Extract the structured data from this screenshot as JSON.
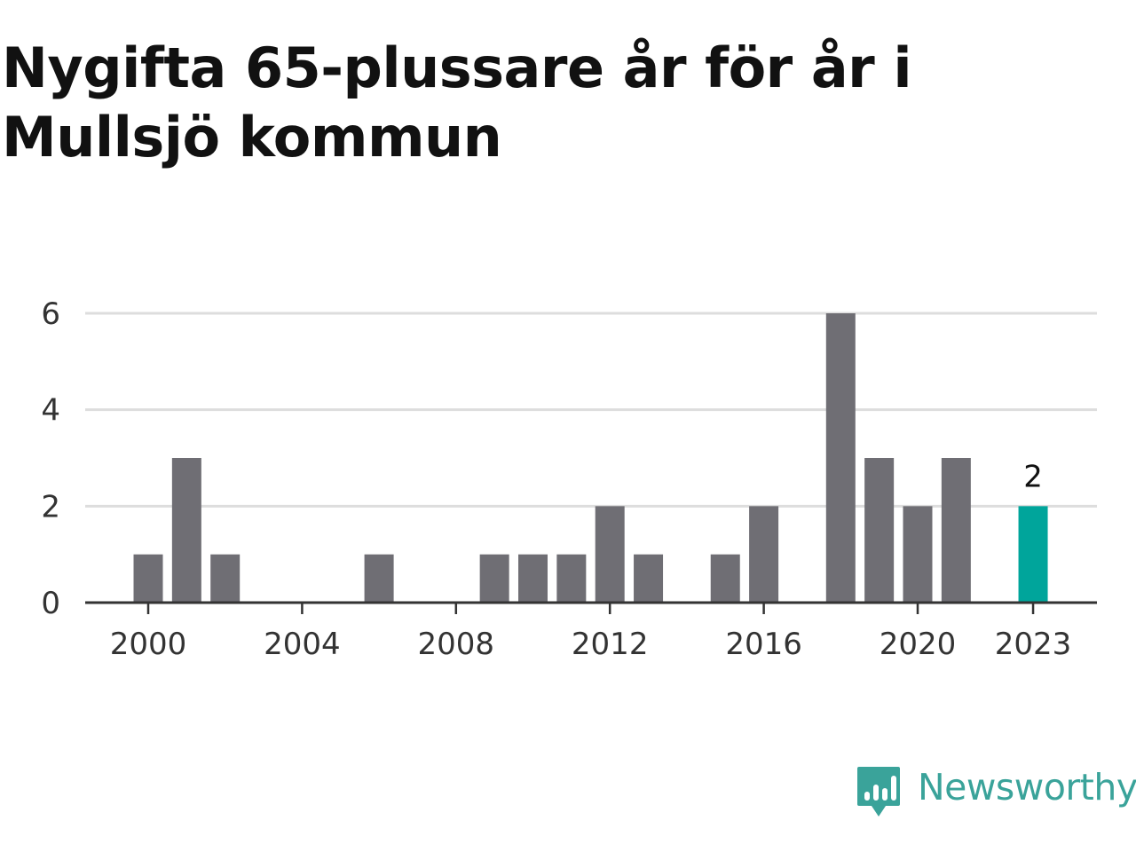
{
  "title": "Nygifta 65-plussare år för år i Mullsjö kommun",
  "brand": {
    "name": "Newsworthy",
    "color": "#3aa39a",
    "icon": "newsworthy-logo-icon"
  },
  "colors": {
    "bar": "#6f6e74",
    "highlight": "#00a59b",
    "grid": "#dddddd",
    "axis": "#333333"
  },
  "chart_data": {
    "type": "bar",
    "title": "Nygifta 65-plussare år för år i Mullsjö kommun",
    "xlabel": "",
    "ylabel": "",
    "categories": [
      2000,
      2001,
      2002,
      2003,
      2004,
      2005,
      2006,
      2007,
      2008,
      2009,
      2010,
      2011,
      2012,
      2013,
      2014,
      2015,
      2016,
      2017,
      2018,
      2019,
      2020,
      2021,
      2022,
      2023
    ],
    "values": [
      1,
      3,
      1,
      0,
      0,
      0,
      1,
      0,
      0,
      1,
      1,
      1,
      2,
      1,
      0,
      1,
      2,
      0,
      6,
      3,
      2,
      3,
      0,
      2
    ],
    "highlight_category": 2023,
    "highlight_label": "2",
    "ylim": [
      0,
      6
    ],
    "yticks": [
      0,
      2,
      4,
      6
    ],
    "xticks": [
      2000,
      2004,
      2008,
      2012,
      2016,
      2020,
      2023
    ],
    "grid": true,
    "legend": "none"
  }
}
